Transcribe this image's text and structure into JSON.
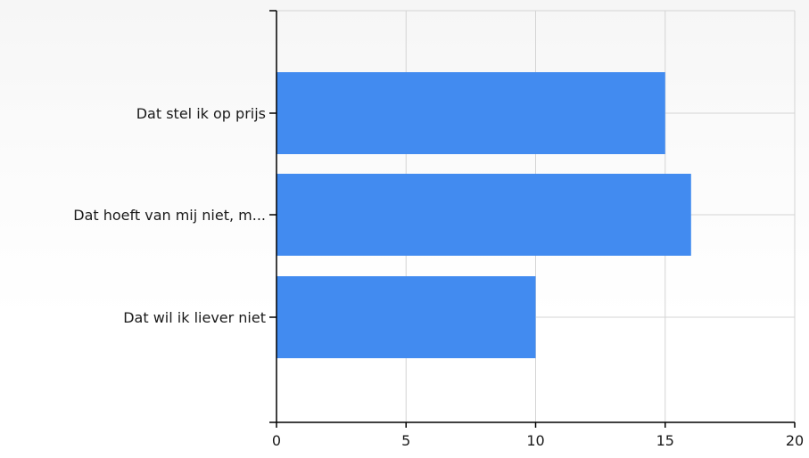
{
  "chart_data": {
    "type": "bar",
    "orientation": "horizontal",
    "categories": [
      "Dat stel ik op prijs",
      "Dat hoeft van mij niet, m...",
      "Dat wil ik liever niet"
    ],
    "values": [
      15,
      16,
      10
    ],
    "xlim": [
      0,
      20
    ],
    "xticks": [
      0,
      5,
      10,
      15,
      20
    ],
    "xtick_labels": [
      "0",
      "5",
      "10",
      "15",
      "20"
    ],
    "grid": true,
    "legend": "none",
    "title": "",
    "xlabel": "",
    "ylabel": ""
  },
  "colors": {
    "bar": "#428bf0",
    "grid": "#d4d4d4",
    "axis": "#000000",
    "text": "#1a1a1a"
  }
}
